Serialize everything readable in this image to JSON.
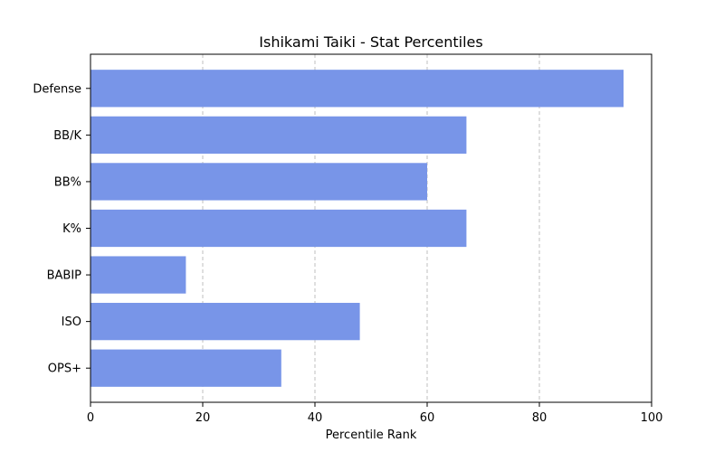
{
  "chart_data": {
    "type": "bar",
    "orientation": "horizontal",
    "title": "Ishikami Taiki - Stat Percentiles",
    "xlabel": "Percentile Rank",
    "ylabel": "",
    "categories": [
      "Defense",
      "BB/K",
      "BB%",
      "K%",
      "BABIP",
      "ISO",
      "OPS+"
    ],
    "values": [
      95,
      67,
      60,
      67,
      17,
      48,
      34
    ],
    "xlim": [
      0,
      100
    ],
    "xticks": [
      "0",
      "20",
      "40",
      "60",
      "80",
      "100"
    ],
    "grid": "x-dashed",
    "bar_color": "#7895e8"
  }
}
